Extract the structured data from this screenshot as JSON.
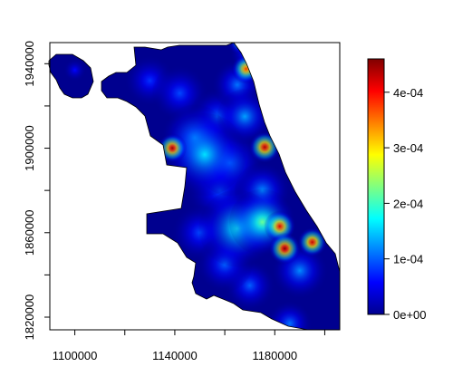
{
  "chart_data": {
    "type": "heatmap",
    "title": "",
    "xlabel": "",
    "ylabel": "",
    "xlim": [
      1090000,
      1206000
    ],
    "ylim": [
      1814000,
      1950000
    ],
    "x_ticks": [
      1100000,
      1140000,
      1180000
    ],
    "x_tick_labels": [
      "1100000",
      "1140000",
      "1180000"
    ],
    "y_ticks": [
      1820000,
      1860000,
      1900000,
      1940000
    ],
    "y_tick_labels": [
      "1820000",
      "1860000",
      "1900000",
      "1940000"
    ],
    "colorbar": {
      "min": 0,
      "max": 0.00046,
      "ticks": [
        0,
        0.0001,
        0.0002,
        0.0003,
        0.0004
      ],
      "tick_labels": [
        "0e+00",
        "1e-04",
        "2e-04",
        "3e-04",
        "4e-04"
      ],
      "colormap": [
        "#00008f",
        "#0000ff",
        "#0080ff",
        "#00ffff",
        "#80ff80",
        "#ffff00",
        "#ff8000",
        "#ff0000",
        "#800000"
      ]
    },
    "background_color": "#00008f",
    "hotspots": [
      {
        "x": 1168500,
        "y": 1937500,
        "value": 0.00038,
        "r": 2600
      },
      {
        "x": 1176000,
        "y": 1900500,
        "value": 0.00044,
        "r": 2800
      },
      {
        "x": 1139000,
        "y": 1900000,
        "value": 0.00045,
        "r": 2600
      },
      {
        "x": 1182000,
        "y": 1863000,
        "value": 0.00042,
        "r": 2800
      },
      {
        "x": 1184000,
        "y": 1852500,
        "value": 0.00046,
        "r": 2800
      },
      {
        "x": 1195000,
        "y": 1855500,
        "value": 0.00043,
        "r": 2600
      },
      {
        "x": 1175000,
        "y": 1865000,
        "value": 0.00022,
        "r": 6000
      },
      {
        "x": 1165000,
        "y": 1862000,
        "value": 0.00018,
        "r": 7000
      },
      {
        "x": 1152000,
        "y": 1897000,
        "value": 0.00016,
        "r": 7500
      },
      {
        "x": 1148000,
        "y": 1905000,
        "value": 0.00015,
        "r": 6000
      },
      {
        "x": 1162000,
        "y": 1893000,
        "value": 0.00012,
        "r": 6000
      },
      {
        "x": 1168000,
        "y": 1915000,
        "value": 0.00013,
        "r": 5000
      },
      {
        "x": 1165000,
        "y": 1930000,
        "value": 0.00011,
        "r": 4500
      },
      {
        "x": 1170000,
        "y": 1945000,
        "value": 0.00012,
        "r": 3500
      },
      {
        "x": 1166000,
        "y": 1950000,
        "value": 0.00019,
        "r": 2200
      },
      {
        "x": 1158000,
        "y": 1880000,
        "value": 9e-05,
        "r": 6000
      },
      {
        "x": 1175000,
        "y": 1880000,
        "value": 0.00012,
        "r": 5000
      },
      {
        "x": 1190000,
        "y": 1842000,
        "value": 0.00012,
        "r": 5000
      },
      {
        "x": 1170000,
        "y": 1835000,
        "value": 0.0001,
        "r": 4500
      },
      {
        "x": 1186000,
        "y": 1817000,
        "value": 0.00011,
        "r": 4000
      },
      {
        "x": 1150000,
        "y": 1860000,
        "value": 9e-05,
        "r": 5000
      },
      {
        "x": 1160000,
        "y": 1845000,
        "value": 0.0001,
        "r": 5000
      },
      {
        "x": 1142000,
        "y": 1926000,
        "value": 9e-05,
        "r": 5000
      },
      {
        "x": 1130000,
        "y": 1932000,
        "value": 8e-05,
        "r": 4500
      },
      {
        "x": 1157000,
        "y": 1915000,
        "value": 0.0001,
        "r": 5000
      },
      {
        "x": 1100000,
        "y": 1937000,
        "value": 6e-05,
        "r": 2000
      }
    ]
  }
}
